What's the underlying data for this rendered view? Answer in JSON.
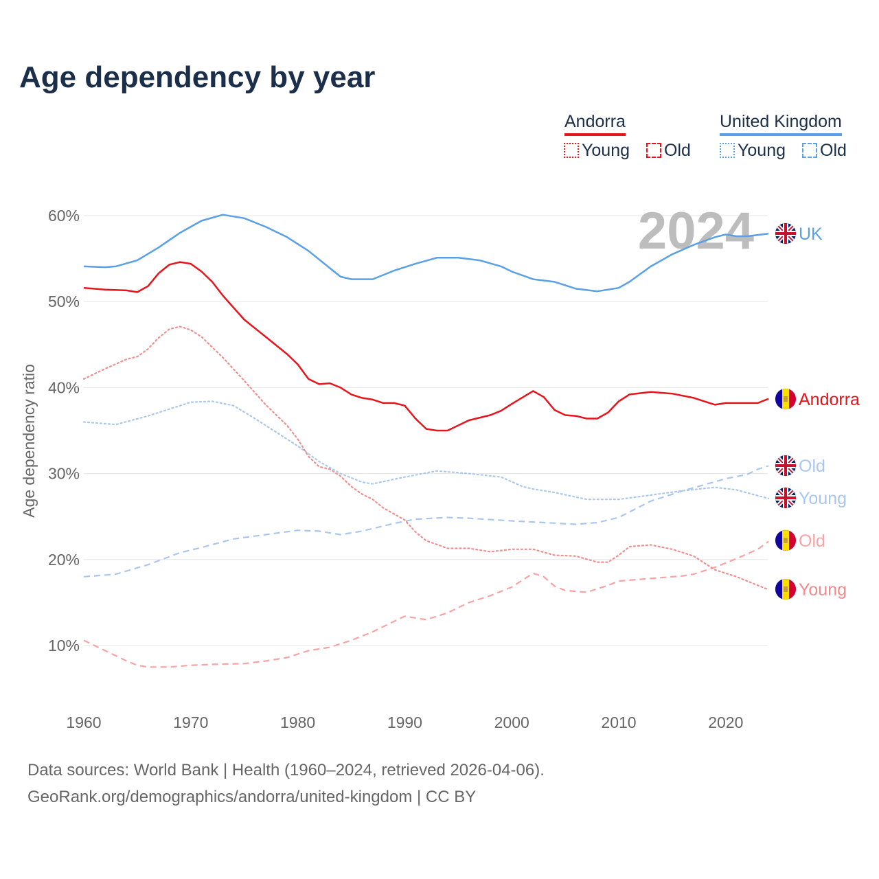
{
  "title": "Age dependency by year",
  "legend": {
    "groups": [
      {
        "name": "Andorra",
        "color": "#e8141c",
        "light": "#f28b8b",
        "items": [
          "Young",
          "Old"
        ]
      },
      {
        "name": "United Kingdom",
        "color": "#5aa0e6",
        "light": "#a9c7ee",
        "items": [
          "Young",
          "Old"
        ]
      }
    ]
  },
  "watermark_year": "2024",
  "source_line1": "Data sources: World Bank | Health (1960–2024, retrieved 2026-04-06).",
  "source_line2": "GeoRank.org/demographics/andorra/united-kingdom | CC BY",
  "chart_data": {
    "type": "line",
    "title": "Age dependency by year",
    "xlabel": "",
    "ylabel": "Age dependency ratio",
    "xlim": [
      1960,
      2024
    ],
    "ylim": [
      3,
      64
    ],
    "x_ticks": [
      "1960",
      "1970",
      "1980",
      "1990",
      "2000",
      "2010",
      "2020"
    ],
    "y_ticks": [
      "10%",
      "20%",
      "30%",
      "40%",
      "50%",
      "60%"
    ],
    "y_tick_values": [
      10,
      20,
      30,
      40,
      50,
      60
    ],
    "grid": true,
    "series": [
      {
        "name": "UK",
        "label": "UK",
        "country": "United Kingdom",
        "kind": "total",
        "color": "#5aa0e6",
        "dash": "solid",
        "flag": "uk",
        "points": [
          [
            1960,
            54.1
          ],
          [
            1962,
            54.0
          ],
          [
            1963,
            54.1
          ],
          [
            1965,
            54.8
          ],
          [
            1967,
            56.3
          ],
          [
            1969,
            58.0
          ],
          [
            1971,
            59.4
          ],
          [
            1973,
            60.1
          ],
          [
            1975,
            59.7
          ],
          [
            1977,
            58.7
          ],
          [
            1979,
            57.5
          ],
          [
            1981,
            55.9
          ],
          [
            1983,
            53.9
          ],
          [
            1984,
            52.9
          ],
          [
            1985,
            52.6
          ],
          [
            1987,
            52.6
          ],
          [
            1989,
            53.6
          ],
          [
            1991,
            54.4
          ],
          [
            1993,
            55.1
          ],
          [
            1995,
            55.1
          ],
          [
            1997,
            54.8
          ],
          [
            1999,
            54.1
          ],
          [
            2000,
            53.5
          ],
          [
            2002,
            52.6
          ],
          [
            2004,
            52.3
          ],
          [
            2006,
            51.5
          ],
          [
            2008,
            51.2
          ],
          [
            2010,
            51.6
          ],
          [
            2011,
            52.3
          ],
          [
            2013,
            54.1
          ],
          [
            2015,
            55.5
          ],
          [
            2017,
            56.6
          ],
          [
            2019,
            57.5
          ],
          [
            2020,
            57.8
          ],
          [
            2021,
            57.6
          ],
          [
            2022,
            57.6
          ],
          [
            2024,
            57.9
          ]
        ]
      },
      {
        "name": "Andorra",
        "label": "Andorra",
        "country": "Andorra",
        "kind": "total",
        "color": "#e8141c",
        "dash": "solid",
        "flag": "ad",
        "points": [
          [
            1960,
            51.6
          ],
          [
            1962,
            51.4
          ],
          [
            1964,
            51.3
          ],
          [
            1965,
            51.1
          ],
          [
            1966,
            51.8
          ],
          [
            1967,
            53.3
          ],
          [
            1968,
            54.3
          ],
          [
            1969,
            54.6
          ],
          [
            1970,
            54.4
          ],
          [
            1971,
            53.5
          ],
          [
            1972,
            52.3
          ],
          [
            1973,
            50.7
          ],
          [
            1975,
            47.9
          ],
          [
            1977,
            45.9
          ],
          [
            1979,
            43.9
          ],
          [
            1980,
            42.7
          ],
          [
            1981,
            41.0
          ],
          [
            1982,
            40.4
          ],
          [
            1983,
            40.5
          ],
          [
            1984,
            40.0
          ],
          [
            1985,
            39.2
          ],
          [
            1986,
            38.8
          ],
          [
            1987,
            38.6
          ],
          [
            1988,
            38.2
          ],
          [
            1989,
            38.2
          ],
          [
            1990,
            37.9
          ],
          [
            1991,
            36.4
          ],
          [
            1992,
            35.2
          ],
          [
            1993,
            35.0
          ],
          [
            1994,
            35.0
          ],
          [
            1996,
            36.2
          ],
          [
            1998,
            36.8
          ],
          [
            1999,
            37.3
          ],
          [
            2000,
            38.1
          ],
          [
            2002,
            39.6
          ],
          [
            2003,
            38.9
          ],
          [
            2004,
            37.4
          ],
          [
            2005,
            36.8
          ],
          [
            2006,
            36.7
          ],
          [
            2007,
            36.4
          ],
          [
            2008,
            36.4
          ],
          [
            2009,
            37.1
          ],
          [
            2010,
            38.4
          ],
          [
            2011,
            39.2
          ],
          [
            2013,
            39.5
          ],
          [
            2015,
            39.3
          ],
          [
            2017,
            38.8
          ],
          [
            2018,
            38.4
          ],
          [
            2019,
            38.0
          ],
          [
            2020,
            38.2
          ],
          [
            2023,
            38.2
          ],
          [
            2024,
            38.7
          ]
        ]
      },
      {
        "name": "UK Old",
        "label": "Old",
        "country": "United Kingdom",
        "kind": "old",
        "color": "#a9c7ee",
        "dash": "dashed",
        "flag": "uk",
        "points": [
          [
            1960,
            18.0
          ],
          [
            1963,
            18.3
          ],
          [
            1966,
            19.4
          ],
          [
            1969,
            20.8
          ],
          [
            1971,
            21.4
          ],
          [
            1974,
            22.4
          ],
          [
            1977,
            22.9
          ],
          [
            1980,
            23.4
          ],
          [
            1982,
            23.3
          ],
          [
            1984,
            22.9
          ],
          [
            1986,
            23.3
          ],
          [
            1989,
            24.2
          ],
          [
            1991,
            24.7
          ],
          [
            1994,
            24.9
          ],
          [
            1996,
            24.8
          ],
          [
            2000,
            24.5
          ],
          [
            2003,
            24.3
          ],
          [
            2006,
            24.1
          ],
          [
            2008,
            24.3
          ],
          [
            2010,
            24.9
          ],
          [
            2013,
            26.8
          ],
          [
            2016,
            28.0
          ],
          [
            2018,
            28.7
          ],
          [
            2020,
            29.4
          ],
          [
            2022,
            29.9
          ],
          [
            2023,
            30.5
          ],
          [
            2024,
            30.9
          ]
        ]
      },
      {
        "name": "UK Young",
        "label": "Young",
        "country": "United Kingdom",
        "kind": "young",
        "color": "#a9c7ee",
        "dash": "dotted",
        "flag": "uk",
        "points": [
          [
            1960,
            36.0
          ],
          [
            1963,
            35.7
          ],
          [
            1966,
            36.7
          ],
          [
            1968,
            37.5
          ],
          [
            1970,
            38.3
          ],
          [
            1972,
            38.4
          ],
          [
            1974,
            37.9
          ],
          [
            1976,
            36.4
          ],
          [
            1978,
            34.8
          ],
          [
            1980,
            33.2
          ],
          [
            1982,
            31.4
          ],
          [
            1984,
            30.0
          ],
          [
            1986,
            29.0
          ],
          [
            1987,
            28.8
          ],
          [
            1990,
            29.6
          ],
          [
            1993,
            30.3
          ],
          [
            1996,
            30.0
          ],
          [
            1999,
            29.6
          ],
          [
            2001,
            28.5
          ],
          [
            2002,
            28.2
          ],
          [
            2004,
            27.8
          ],
          [
            2007,
            27.0
          ],
          [
            2010,
            27.0
          ],
          [
            2013,
            27.5
          ],
          [
            2016,
            28.0
          ],
          [
            2019,
            28.4
          ],
          [
            2021,
            28.1
          ],
          [
            2024,
            27.1
          ]
        ]
      },
      {
        "name": "Andorra Old",
        "label": "Old",
        "country": "Andorra",
        "kind": "old",
        "color": "#f7a3a3",
        "dash": "dashed",
        "flag": "ad",
        "points": [
          [
            1960,
            10.6
          ],
          [
            1962,
            9.4
          ],
          [
            1964,
            8.2
          ],
          [
            1965,
            7.7
          ],
          [
            1966,
            7.5
          ],
          [
            1968,
            7.5
          ],
          [
            1970,
            7.7
          ],
          [
            1972,
            7.8
          ],
          [
            1975,
            7.9
          ],
          [
            1977,
            8.2
          ],
          [
            1979,
            8.6
          ],
          [
            1981,
            9.4
          ],
          [
            1983,
            9.8
          ],
          [
            1985,
            10.6
          ],
          [
            1987,
            11.6
          ],
          [
            1989,
            12.8
          ],
          [
            1990,
            13.4
          ],
          [
            1992,
            13.0
          ],
          [
            1994,
            13.8
          ],
          [
            1996,
            15.0
          ],
          [
            1998,
            15.8
          ],
          [
            2000,
            16.8
          ],
          [
            2002,
            18.4
          ],
          [
            2003,
            18.0
          ],
          [
            2004,
            16.9
          ],
          [
            2005,
            16.4
          ],
          [
            2007,
            16.2
          ],
          [
            2009,
            17.0
          ],
          [
            2010,
            17.5
          ],
          [
            2012,
            17.7
          ],
          [
            2014,
            17.9
          ],
          [
            2016,
            18.1
          ],
          [
            2017,
            18.3
          ],
          [
            2019,
            19.1
          ],
          [
            2021,
            20.1
          ],
          [
            2023,
            21.2
          ],
          [
            2024,
            22.1
          ]
        ]
      },
      {
        "name": "Andorra Young",
        "label": "Young",
        "country": "Andorra",
        "kind": "young",
        "color": "#f28b8b",
        "dash": "dotted",
        "flag": "ad",
        "points": [
          [
            1960,
            41.0
          ],
          [
            1962,
            42.2
          ],
          [
            1964,
            43.3
          ],
          [
            1965,
            43.6
          ],
          [
            1966,
            44.5
          ],
          [
            1967,
            45.8
          ],
          [
            1968,
            46.8
          ],
          [
            1969,
            47.1
          ],
          [
            1970,
            46.7
          ],
          [
            1971,
            45.9
          ],
          [
            1973,
            43.5
          ],
          [
            1975,
            40.8
          ],
          [
            1977,
            38.0
          ],
          [
            1979,
            35.6
          ],
          [
            1980,
            34.0
          ],
          [
            1981,
            32.0
          ],
          [
            1982,
            30.8
          ],
          [
            1983,
            30.5
          ],
          [
            1984,
            29.7
          ],
          [
            1985,
            28.5
          ],
          [
            1986,
            27.6
          ],
          [
            1987,
            27.0
          ],
          [
            1988,
            26.0
          ],
          [
            1990,
            24.6
          ],
          [
            1991,
            23.2
          ],
          [
            1992,
            22.2
          ],
          [
            1994,
            21.3
          ],
          [
            1996,
            21.3
          ],
          [
            1998,
            20.9
          ],
          [
            2000,
            21.2
          ],
          [
            2002,
            21.2
          ],
          [
            2004,
            20.5
          ],
          [
            2006,
            20.4
          ],
          [
            2008,
            19.7
          ],
          [
            2009,
            19.7
          ],
          [
            2010,
            20.5
          ],
          [
            2011,
            21.5
          ],
          [
            2013,
            21.7
          ],
          [
            2015,
            21.2
          ],
          [
            2017,
            20.4
          ],
          [
            2018,
            19.6
          ],
          [
            2019,
            18.8
          ],
          [
            2021,
            18.0
          ],
          [
            2023,
            17.0
          ],
          [
            2024,
            16.5
          ]
        ]
      }
    ]
  }
}
